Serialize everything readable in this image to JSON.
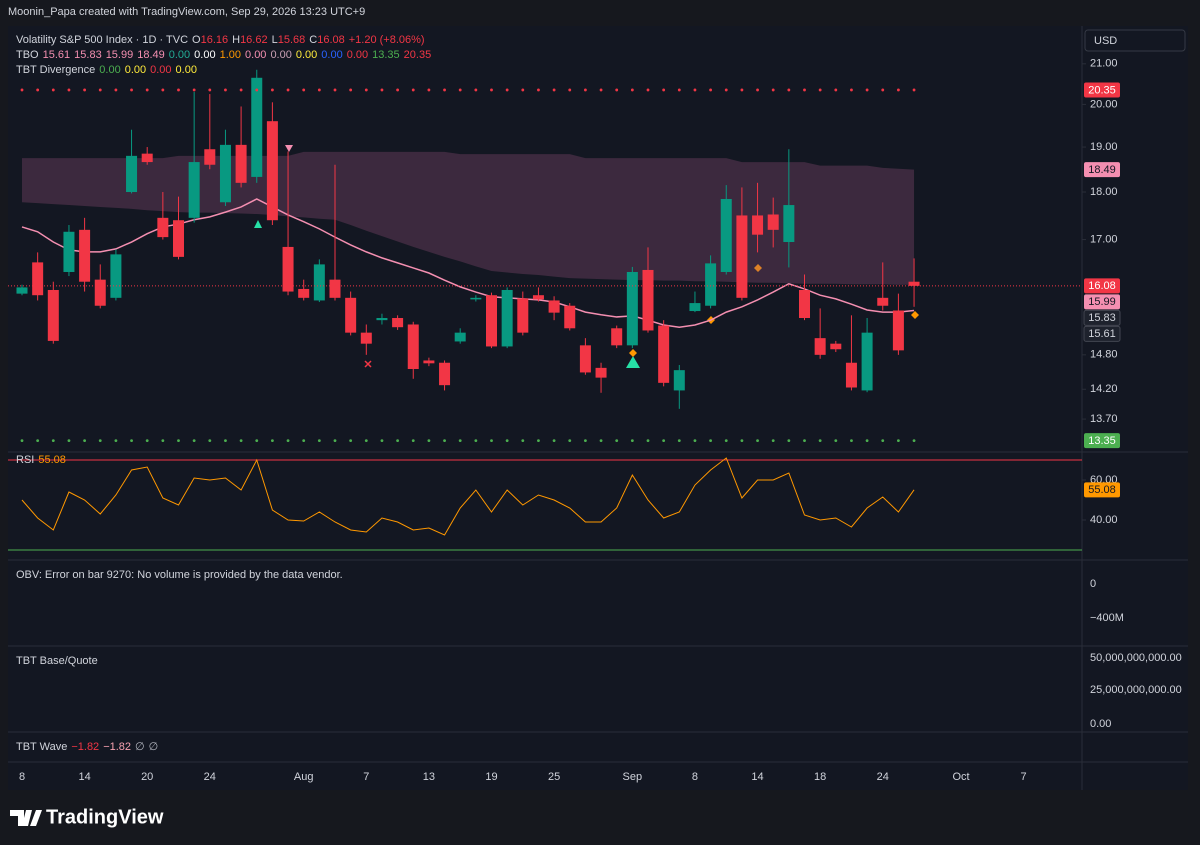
{
  "header": {
    "attribution": "Moonin_Papa created with TradingView.com, Sep 29, 2026 13:23 UTC+9",
    "currency": "USD"
  },
  "legend": {
    "symbol": "Volatility S&P 500 Index · 1D · TVC",
    "ohlc_letters": [
      "O",
      "H",
      "L",
      "C"
    ],
    "change": "+1.20 (+8.06%)",
    "tbo": {
      "name": "TBO",
      "values": [
        {
          "text": "15.61",
          "color": "#f48fb1"
        },
        {
          "text": "15.83",
          "color": "#f48fb1"
        },
        {
          "text": "15.99",
          "color": "#f48fb1"
        },
        {
          "text": "18.49",
          "color": "#f48fb1"
        },
        {
          "text": "0.00",
          "color": "#22ab94"
        },
        {
          "text": "0.00",
          "color": "#ffffff"
        },
        {
          "text": "1.00",
          "color": "#ff9800"
        },
        {
          "text": "0.00",
          "color": "#f48fb1"
        },
        {
          "text": "0.00",
          "color": "#c9a0b4"
        },
        {
          "text": "0.00",
          "color": "#ffeb3b"
        },
        {
          "text": "0.00",
          "color": "#2962ff"
        },
        {
          "text": "0.00",
          "color": "#f23645"
        },
        {
          "text": "13.35",
          "color": "#4caf50"
        },
        {
          "text": "20.35",
          "color": "#f23645"
        }
      ]
    },
    "divergence": {
      "name": "TBT Divergence",
      "values": [
        {
          "text": "0.00",
          "color": "#4caf50"
        },
        {
          "text": "0.00",
          "color": "#ffeb3b"
        },
        {
          "text": "0.00",
          "color": "#f23645"
        },
        {
          "text": "0.00",
          "color": "#ffeb3b"
        }
      ]
    }
  },
  "chart_data": [
    {
      "type": "candlestick",
      "log": true,
      "up_color": "#089981",
      "down_color": "#f23645",
      "categories": [
        "8",
        null,
        null,
        null,
        "14",
        null,
        null,
        null,
        "20",
        null,
        null,
        null,
        "24",
        null,
        null,
        null,
        null,
        null,
        "Aug",
        null,
        null,
        null,
        "7",
        null,
        null,
        null,
        "13",
        null,
        null,
        null,
        "19",
        null,
        null,
        null,
        "25",
        null,
        null,
        null,
        null,
        "Sep",
        null,
        null,
        null,
        "8",
        null,
        null,
        null,
        "14",
        null,
        null,
        null,
        "18",
        null,
        null,
        null,
        "24",
        null,
        null,
        null,
        null,
        "Oct",
        null,
        null,
        null,
        "7",
        null,
        null,
        null
      ],
      "open": [
        15.93,
        16.54,
        16.0,
        16.35,
        17.2,
        16.2,
        15.85,
        18.0,
        18.85,
        17.45,
        17.4,
        17.45,
        18.95,
        17.78,
        19.05,
        18.33,
        19.6,
        16.85,
        16.02,
        15.8,
        16.2,
        15.85,
        15.2,
        15.43,
        15.47,
        15.35,
        14.7,
        14.66,
        15.04,
        15.82,
        15.9,
        14.95,
        15.84,
        15.9,
        15.8,
        15.7,
        14.97,
        14.57,
        15.28,
        14.97,
        16.39,
        15.33,
        14.18,
        15.6,
        15.7,
        16.35,
        17.5,
        17.5,
        17.52,
        16.95,
        16.0,
        15.1,
        15.0,
        14.66,
        14.18,
        15.85,
        15.61,
        16.16,
        null,
        null,
        null,
        null,
        null,
        null,
        null,
        null,
        null,
        null
      ],
      "high": [
        16.1,
        16.74,
        16.16,
        17.3,
        17.45,
        16.5,
        16.8,
        19.4,
        19.0,
        18.0,
        17.9,
        20.3,
        20.25,
        19.4,
        19.95,
        20.85,
        20.05,
        18.9,
        16.2,
        16.6,
        18.6,
        15.97,
        15.35,
        15.55,
        15.52,
        15.4,
        14.75,
        14.7,
        15.28,
        15.9,
        15.95,
        16.05,
        15.97,
        16.05,
        15.88,
        15.75,
        15.1,
        14.66,
        15.33,
        16.45,
        16.84,
        15.43,
        14.62,
        15.97,
        16.68,
        18.15,
        18.1,
        18.2,
        17.88,
        18.95,
        16.3,
        15.65,
        15.05,
        15.52,
        15.47,
        16.54,
        15.93,
        16.62,
        null,
        null,
        null,
        null,
        null,
        null,
        null,
        null,
        null,
        null
      ],
      "low": [
        15.9,
        15.8,
        15.0,
        16.27,
        15.97,
        15.65,
        15.8,
        17.97,
        18.6,
        17.0,
        16.6,
        17.35,
        18.5,
        17.7,
        18.1,
        18.2,
        17.3,
        15.9,
        15.8,
        15.77,
        15.8,
        15.15,
        14.8,
        15.35,
        15.25,
        14.38,
        14.6,
        14.18,
        15.0,
        15.78,
        14.92,
        14.92,
        15.15,
        15.78,
        15.43,
        15.24,
        14.45,
        14.14,
        14.92,
        14.92,
        15.2,
        14.25,
        13.87,
        15.58,
        15.65,
        16.3,
        15.8,
        16.74,
        16.84,
        16.44,
        15.43,
        14.73,
        14.85,
        14.18,
        14.15,
        15.61,
        14.8,
        15.68,
        null,
        null,
        null,
        null,
        null,
        null,
        null,
        null,
        null,
        null
      ],
      "close": [
        16.05,
        15.9,
        15.05,
        17.16,
        16.16,
        15.7,
        16.7,
        18.8,
        18.66,
        17.05,
        16.65,
        18.66,
        18.6,
        19.05,
        18.2,
        20.65,
        17.4,
        15.97,
        15.85,
        16.5,
        15.85,
        15.2,
        15.0,
        15.47,
        15.3,
        14.55,
        14.65,
        14.27,
        15.2,
        15.85,
        14.95,
        16.0,
        15.2,
        15.82,
        15.57,
        15.28,
        14.49,
        14.4,
        14.97,
        16.35,
        15.24,
        14.31,
        14.53,
        15.75,
        16.52,
        17.85,
        15.85,
        17.1,
        17.2,
        17.72,
        15.47,
        14.8,
        14.9,
        14.23,
        15.2,
        15.7,
        14.88,
        16.08,
        null,
        null,
        null,
        null,
        null,
        null,
        null,
        null,
        null,
        null
      ],
      "overlay": {
        "color": "#f48fb1",
        "values": [
          17.26,
          17.16,
          16.95,
          16.79,
          16.75,
          16.75,
          16.81,
          16.95,
          17.12,
          17.26,
          17.32,
          17.41,
          17.47,
          17.57,
          17.68,
          17.85,
          17.68,
          17.51,
          17.37,
          17.22,
          17.05,
          16.89,
          16.75,
          16.63,
          16.53,
          16.43,
          16.33,
          16.19,
          16.06,
          15.96,
          15.87,
          15.85,
          15.83,
          15.81,
          15.77,
          15.68,
          15.58,
          15.53,
          15.49,
          15.51,
          15.43,
          15.34,
          15.3,
          15.34,
          15.43,
          15.58,
          15.68,
          15.81,
          15.96,
          16.12,
          16.02,
          15.9,
          15.83,
          15.73,
          15.62,
          15.58,
          15.58,
          15.61,
          null,
          null,
          null,
          null,
          null,
          null,
          null,
          null,
          null,
          null
        ]
      },
      "cloud": {
        "color": "rgba(150,80,120,0.32)",
        "upper": [
          18.75,
          18.75,
          18.75,
          18.75,
          18.75,
          18.75,
          18.75,
          18.75,
          18.75,
          18.75,
          18.8,
          18.8,
          18.8,
          18.8,
          18.8,
          18.8,
          18.8,
          18.8,
          18.89,
          18.89,
          18.89,
          18.89,
          18.89,
          18.89,
          18.89,
          18.89,
          18.89,
          18.89,
          18.84,
          18.84,
          18.84,
          18.84,
          18.84,
          18.84,
          18.84,
          18.84,
          18.75,
          18.75,
          18.75,
          18.75,
          18.75,
          18.75,
          18.75,
          18.75,
          18.75,
          18.75,
          18.66,
          18.66,
          18.66,
          18.66,
          18.66,
          18.58,
          18.58,
          18.58,
          18.58,
          18.53,
          18.51,
          18.49,
          null,
          null,
          null,
          null,
          null,
          null,
          null,
          null,
          null,
          null
        ],
        "lower": [
          17.78,
          17.76,
          17.74,
          17.72,
          17.7,
          17.68,
          17.66,
          17.64,
          17.61,
          17.59,
          17.57,
          17.56,
          17.56,
          17.55,
          17.54,
          17.53,
          17.51,
          17.48,
          17.46,
          17.43,
          17.41,
          17.3,
          17.18,
          17.07,
          16.96,
          16.85,
          16.75,
          16.65,
          16.56,
          16.46,
          16.37,
          16.34,
          16.31,
          16.29,
          16.26,
          16.23,
          16.22,
          16.21,
          16.2,
          16.19,
          16.19,
          16.18,
          16.18,
          16.17,
          16.17,
          16.16,
          16.15,
          16.14,
          16.14,
          16.13,
          16.12,
          16.12,
          16.12,
          16.11,
          16.11,
          16.11,
          16.1,
          16.1,
          null,
          null,
          null,
          null,
          null,
          null,
          null,
          null,
          null,
          null
        ]
      },
      "ylim": [
        13.2,
        21.95
      ],
      "yticks": [
        {
          "value": 21,
          "label": "21.00"
        },
        {
          "value": 20,
          "label": "20.00"
        },
        {
          "value": 19,
          "label": "19.00"
        },
        {
          "value": 18,
          "label": "18.00"
        },
        {
          "value": 17,
          "label": "17.00"
        },
        {
          "value": 14.8,
          "label": "14.80"
        },
        {
          "value": 14.2,
          "label": "14.20"
        },
        {
          "value": 13.7,
          "label": "13.70"
        }
      ],
      "price_labels": [
        {
          "value": 20.35,
          "bg": "#f23645",
          "fg": "#ffffff",
          "dots": true
        },
        {
          "value": 18.49,
          "bg": "#f48fb1",
          "fg": "#131722"
        },
        {
          "value": 16.08,
          "bg": "#f23645",
          "fg": "#ffffff",
          "last_line": true
        },
        {
          "value": 15.99,
          "bg": "#f48fb1",
          "fg": "#131722"
        },
        {
          "value": 15.83,
          "bg": "#1e222d",
          "fg": "#d1d4dc"
        },
        {
          "value": 15.61,
          "bg": "#1e222d",
          "fg": "#d1d4dc"
        },
        {
          "value": 13.35,
          "bg": "#4caf50",
          "fg": "#ffffff",
          "dots": true
        }
      ]
    },
    {
      "type": "line",
      "title": "RSI",
      "color": "#ff9800",
      "values": [
        50,
        41,
        35,
        54,
        50,
        43,
        52.5,
        65,
        66.5,
        51,
        47.5,
        61,
        60,
        61,
        55,
        70,
        45,
        40,
        39.5,
        44,
        39,
        35,
        34,
        41,
        39,
        35,
        36,
        32.5,
        46,
        55,
        44,
        55,
        47.5,
        52.5,
        50,
        46,
        39,
        39,
        46,
        62.5,
        50,
        41,
        44,
        57.5,
        65,
        71,
        51,
        60,
        60,
        63.5,
        42.5,
        40,
        41,
        36.5,
        46,
        51.5,
        44,
        55.08,
        null,
        null,
        null,
        null,
        null,
        null,
        null,
        null,
        null,
        null
      ],
      "ylim": [
        22,
        74
      ],
      "yticks": [
        {
          "value": 60,
          "label": "60.00"
        },
        {
          "value": 40,
          "label": "40.00"
        }
      ],
      "bands": [
        {
          "value": 70,
          "color": "#f23645"
        },
        {
          "value": 25,
          "color": "#4caf50"
        }
      ]
    }
  ],
  "panes": {
    "obv": {
      "message": "OBV: Error on bar 9270: No volume is provided by the data vendor.",
      "ticks": [
        "0",
        "−400M"
      ]
    },
    "base_quote": {
      "title": "TBT Base/Quote",
      "ticks": [
        "50,000,000,000.00",
        "25,000,000,000.00",
        "0.00"
      ]
    },
    "wave": {
      "name": "TBT Wave",
      "values": [
        {
          "text": "−1.82",
          "color": "#f23645"
        },
        {
          "text": "−1.82",
          "color": "#f7a1b0"
        },
        {
          "text": "∅",
          "color": "#b2b5be"
        },
        {
          "text": "∅",
          "color": "#b2b5be"
        }
      ]
    }
  },
  "footer": {
    "brand": "TradingView"
  }
}
